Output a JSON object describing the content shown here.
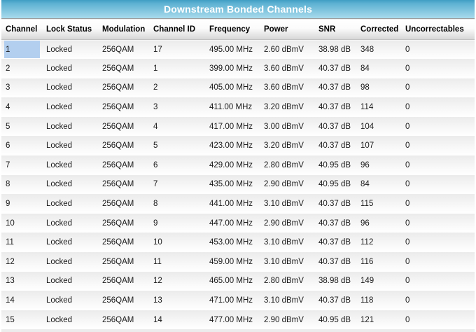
{
  "title": "Downstream Bonded Channels",
  "colors": {
    "title_bar_top": "#3f9dc4",
    "title_bar_bottom": "#a9dbec",
    "title_text": "#ffffff",
    "header_gradient_bottom": "#d6d6d6",
    "row_gradient_top": "#ebebeb",
    "selected_cell_highlight": "#b3cfef",
    "cell_text": "#1a1a1a"
  },
  "table": {
    "columns": [
      "Channel",
      "Lock Status",
      "Modulation",
      "Channel ID",
      "Frequency",
      "Power",
      "SNR",
      "Corrected",
      "Uncorrectables"
    ],
    "column_keys": [
      "channel",
      "lock-status",
      "modulation",
      "channel-id",
      "frequency",
      "power",
      "snr",
      "corrected",
      "uncorrectables"
    ],
    "selected_cell": {
      "row": 0,
      "col": 0
    },
    "rows": [
      [
        "1",
        "Locked",
        "256QAM",
        "17",
        "495.00 MHz",
        "2.60 dBmV",
        "38.98 dB",
        "348",
        "0"
      ],
      [
        "2",
        "Locked",
        "256QAM",
        "1",
        "399.00 MHz",
        "3.60 dBmV",
        "40.37 dB",
        "84",
        "0"
      ],
      [
        "3",
        "Locked",
        "256QAM",
        "2",
        "405.00 MHz",
        "3.60 dBmV",
        "40.37 dB",
        "98",
        "0"
      ],
      [
        "4",
        "Locked",
        "256QAM",
        "3",
        "411.00 MHz",
        "3.20 dBmV",
        "40.37 dB",
        "114",
        "0"
      ],
      [
        "5",
        "Locked",
        "256QAM",
        "4",
        "417.00 MHz",
        "3.00 dBmV",
        "40.37 dB",
        "104",
        "0"
      ],
      [
        "6",
        "Locked",
        "256QAM",
        "5",
        "423.00 MHz",
        "3.20 dBmV",
        "40.37 dB",
        "107",
        "0"
      ],
      [
        "7",
        "Locked",
        "256QAM",
        "6",
        "429.00 MHz",
        "2.80 dBmV",
        "40.95 dB",
        "96",
        "0"
      ],
      [
        "8",
        "Locked",
        "256QAM",
        "7",
        "435.00 MHz",
        "2.90 dBmV",
        "40.95 dB",
        "84",
        "0"
      ],
      [
        "9",
        "Locked",
        "256QAM",
        "8",
        "441.00 MHz",
        "3.10 dBmV",
        "40.37 dB",
        "115",
        "0"
      ],
      [
        "10",
        "Locked",
        "256QAM",
        "9",
        "447.00 MHz",
        "2.90 dBmV",
        "40.37 dB",
        "96",
        "0"
      ],
      [
        "11",
        "Locked",
        "256QAM",
        "10",
        "453.00 MHz",
        "3.10 dBmV",
        "40.37 dB",
        "112",
        "0"
      ],
      [
        "12",
        "Locked",
        "256QAM",
        "11",
        "459.00 MHz",
        "3.10 dBmV",
        "40.37 dB",
        "116",
        "0"
      ],
      [
        "13",
        "Locked",
        "256QAM",
        "12",
        "465.00 MHz",
        "2.80 dBmV",
        "38.98 dB",
        "149",
        "0"
      ],
      [
        "14",
        "Locked",
        "256QAM",
        "13",
        "471.00 MHz",
        "3.10 dBmV",
        "40.37 dB",
        "118",
        "0"
      ],
      [
        "15",
        "Locked",
        "256QAM",
        "14",
        "477.00 MHz",
        "2.90 dBmV",
        "40.95 dB",
        "121",
        "0"
      ]
    ]
  }
}
